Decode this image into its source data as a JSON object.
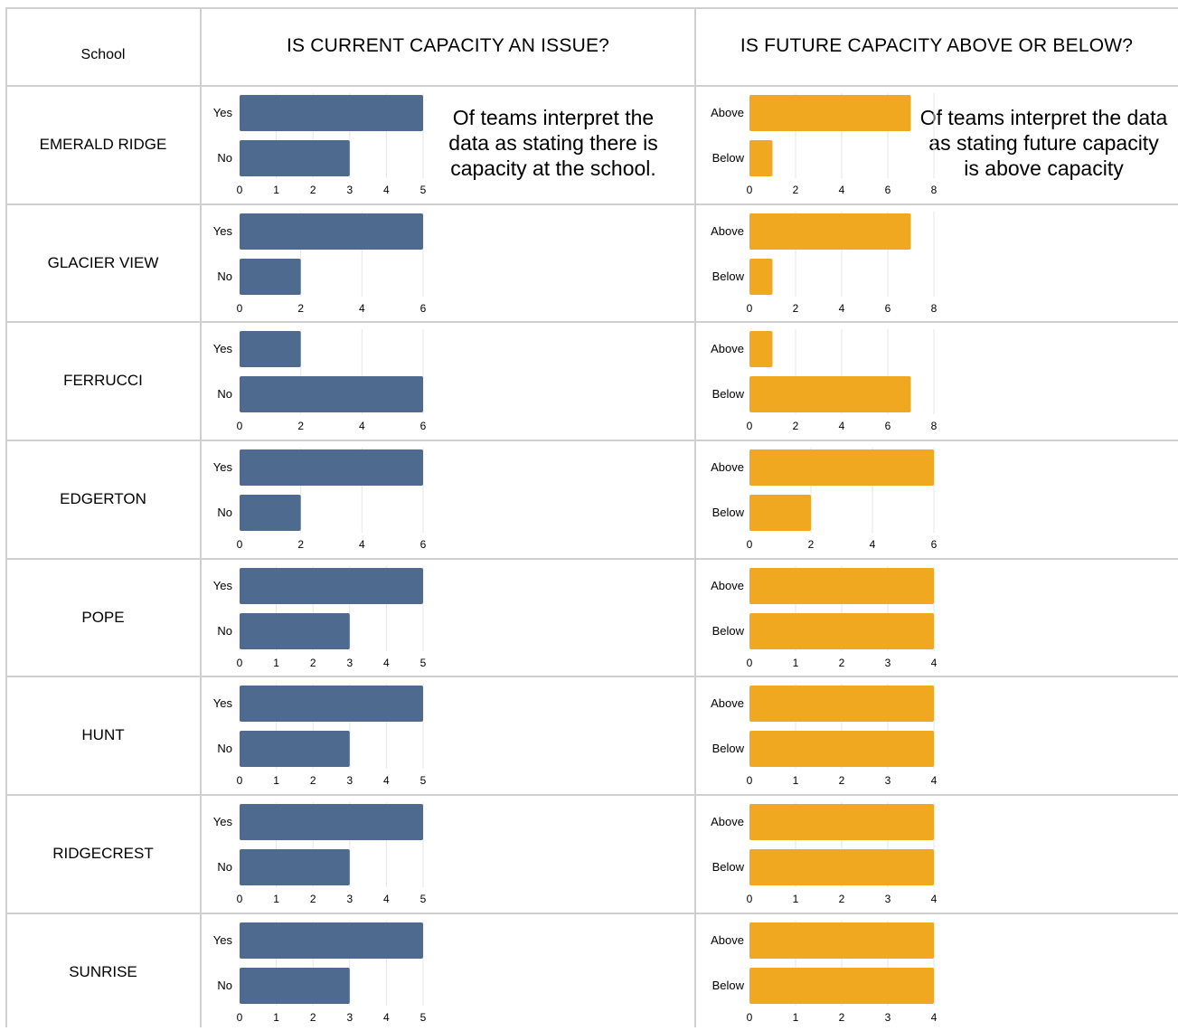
{
  "header": {
    "school_label": "School",
    "current_title": "IS CURRENT CAPACITY AN ISSUE?",
    "future_title": "IS FUTURE CAPACITY ABOVE OR BELOW?"
  },
  "annotations": {
    "current": [
      "Of teams interpret the",
      "data as stating there is",
      "capacity at the school."
    ],
    "future": [
      "Of teams interpret the data",
      "as stating future capacity",
      "is above capacity"
    ]
  },
  "colors": {
    "current": "#4f6a8f",
    "future": "#f0a820",
    "grid": "#e6e6e6",
    "rule": "#d0d0d0"
  },
  "chart_data": [
    {
      "type": "bar",
      "school": "EMERALD RIDGE",
      "current": {
        "categories": [
          "Yes",
          "No"
        ],
        "values": [
          5,
          3
        ],
        "ticks": [
          0,
          1,
          2,
          3,
          4,
          5
        ]
      },
      "future": {
        "categories": [
          "Above",
          "Below"
        ],
        "values": [
          7,
          1
        ],
        "ticks": [
          0,
          2,
          4,
          6,
          8
        ]
      }
    },
    {
      "type": "bar",
      "school": "GLACIER VIEW",
      "current": {
        "categories": [
          "Yes",
          "No"
        ],
        "values": [
          6,
          2
        ],
        "ticks": [
          0,
          2,
          4,
          6
        ]
      },
      "future": {
        "categories": [
          "Above",
          "Below"
        ],
        "values": [
          7,
          1
        ],
        "ticks": [
          0,
          2,
          4,
          6,
          8
        ]
      }
    },
    {
      "type": "bar",
      "school": "FERRUCCI",
      "current": {
        "categories": [
          "Yes",
          "No"
        ],
        "values": [
          2,
          6
        ],
        "ticks": [
          0,
          2,
          4,
          6
        ]
      },
      "future": {
        "categories": [
          "Above",
          "Below"
        ],
        "values": [
          1,
          7
        ],
        "ticks": [
          0,
          2,
          4,
          6,
          8
        ]
      }
    },
    {
      "type": "bar",
      "school": "EDGERTON",
      "current": {
        "categories": [
          "Yes",
          "No"
        ],
        "values": [
          6,
          2
        ],
        "ticks": [
          0,
          2,
          4,
          6
        ]
      },
      "future": {
        "categories": [
          "Above",
          "Below"
        ],
        "values": [
          6,
          2
        ],
        "ticks": [
          0,
          2,
          4,
          6
        ]
      }
    },
    {
      "type": "bar",
      "school": "POPE",
      "current": {
        "categories": [
          "Yes",
          "No"
        ],
        "values": [
          5,
          3
        ],
        "ticks": [
          0,
          1,
          2,
          3,
          4,
          5
        ]
      },
      "future": {
        "categories": [
          "Above",
          "Below"
        ],
        "values": [
          4,
          4
        ],
        "ticks": [
          0,
          1,
          2,
          3,
          4
        ]
      }
    },
    {
      "type": "bar",
      "school": "HUNT",
      "current": {
        "categories": [
          "Yes",
          "No"
        ],
        "values": [
          5,
          3
        ],
        "ticks": [
          0,
          1,
          2,
          3,
          4,
          5
        ]
      },
      "future": {
        "categories": [
          "Above",
          "Below"
        ],
        "values": [
          4,
          4
        ],
        "ticks": [
          0,
          1,
          2,
          3,
          4
        ]
      }
    },
    {
      "type": "bar",
      "school": "RIDGECREST",
      "current": {
        "categories": [
          "Yes",
          "No"
        ],
        "values": [
          5,
          3
        ],
        "ticks": [
          0,
          1,
          2,
          3,
          4,
          5
        ]
      },
      "future": {
        "categories": [
          "Above",
          "Below"
        ],
        "values": [
          4,
          4
        ],
        "ticks": [
          0,
          1,
          2,
          3,
          4
        ]
      }
    },
    {
      "type": "bar",
      "school": "SUNRISE",
      "current": {
        "categories": [
          "Yes",
          "No"
        ],
        "values": [
          5,
          3
        ],
        "ticks": [
          0,
          1,
          2,
          3,
          4,
          5
        ]
      },
      "future": {
        "categories": [
          "Above",
          "Below"
        ],
        "values": [
          4,
          4
        ],
        "ticks": [
          0,
          1,
          2,
          3,
          4
        ]
      }
    }
  ]
}
